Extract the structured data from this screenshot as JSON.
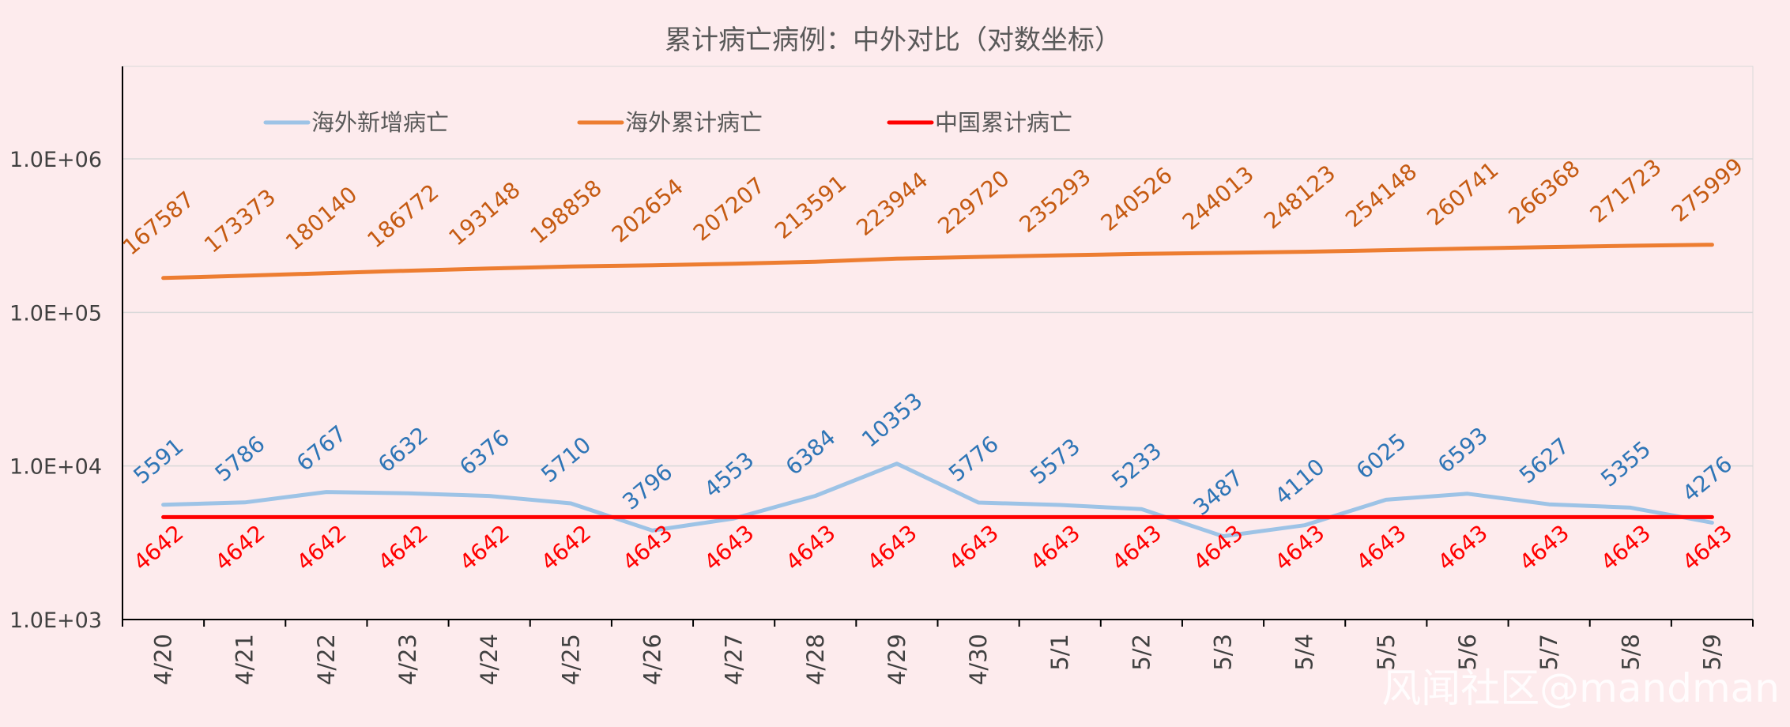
{
  "chart_data": {
    "type": "line",
    "title": "累计病亡病例：中外对比（对数坐标）",
    "y_scale": "log",
    "ylim": [
      1000,
      4000000
    ],
    "y_ticks": [
      {
        "value": 1000,
        "label": "1.0E+03"
      },
      {
        "value": 10000,
        "label": "1.0E+04"
      },
      {
        "value": 100000,
        "label": "1.0E+05"
      },
      {
        "value": 1000000,
        "label": "1.0E+06"
      }
    ],
    "gridlines": true,
    "legend_position": "top-left",
    "categories": [
      "4/20",
      "4/21",
      "4/22",
      "4/23",
      "4/24",
      "4/25",
      "4/26",
      "4/27",
      "4/28",
      "4/29",
      "4/30",
      "5/1",
      "5/2",
      "5/3",
      "5/4",
      "5/5",
      "5/6",
      "5/7",
      "5/8",
      "5/9"
    ],
    "series": [
      {
        "name": "海外新增病亡",
        "color": "#9dc3e6",
        "label_color": "#2e75b6",
        "values": [
          5591,
          5786,
          6767,
          6632,
          6376,
          5710,
          3796,
          4553,
          6384,
          10353,
          5776,
          5573,
          5233,
          3487,
          4110,
          6025,
          6593,
          5627,
          5355,
          4276
        ]
      },
      {
        "name": "海外累计病亡",
        "color": "#ed7d31",
        "label_color": "#c55a11",
        "values": [
          167587,
          173373,
          180140,
          186772,
          193148,
          198858,
          202654,
          207207,
          213591,
          223944,
          229720,
          235293,
          240526,
          244013,
          248123,
          254148,
          260741,
          266368,
          271723,
          275999
        ]
      },
      {
        "name": "中国累计病亡",
        "color": "#ff0000",
        "label_color": "#ff0000",
        "values": [
          4642,
          4642,
          4642,
          4642,
          4642,
          4642,
          4643,
          4643,
          4643,
          4643,
          4643,
          4643,
          4643,
          4643,
          4643,
          4643,
          4643,
          4643,
          4643,
          4643
        ]
      }
    ]
  },
  "watermark": "风闻社区@mandman"
}
